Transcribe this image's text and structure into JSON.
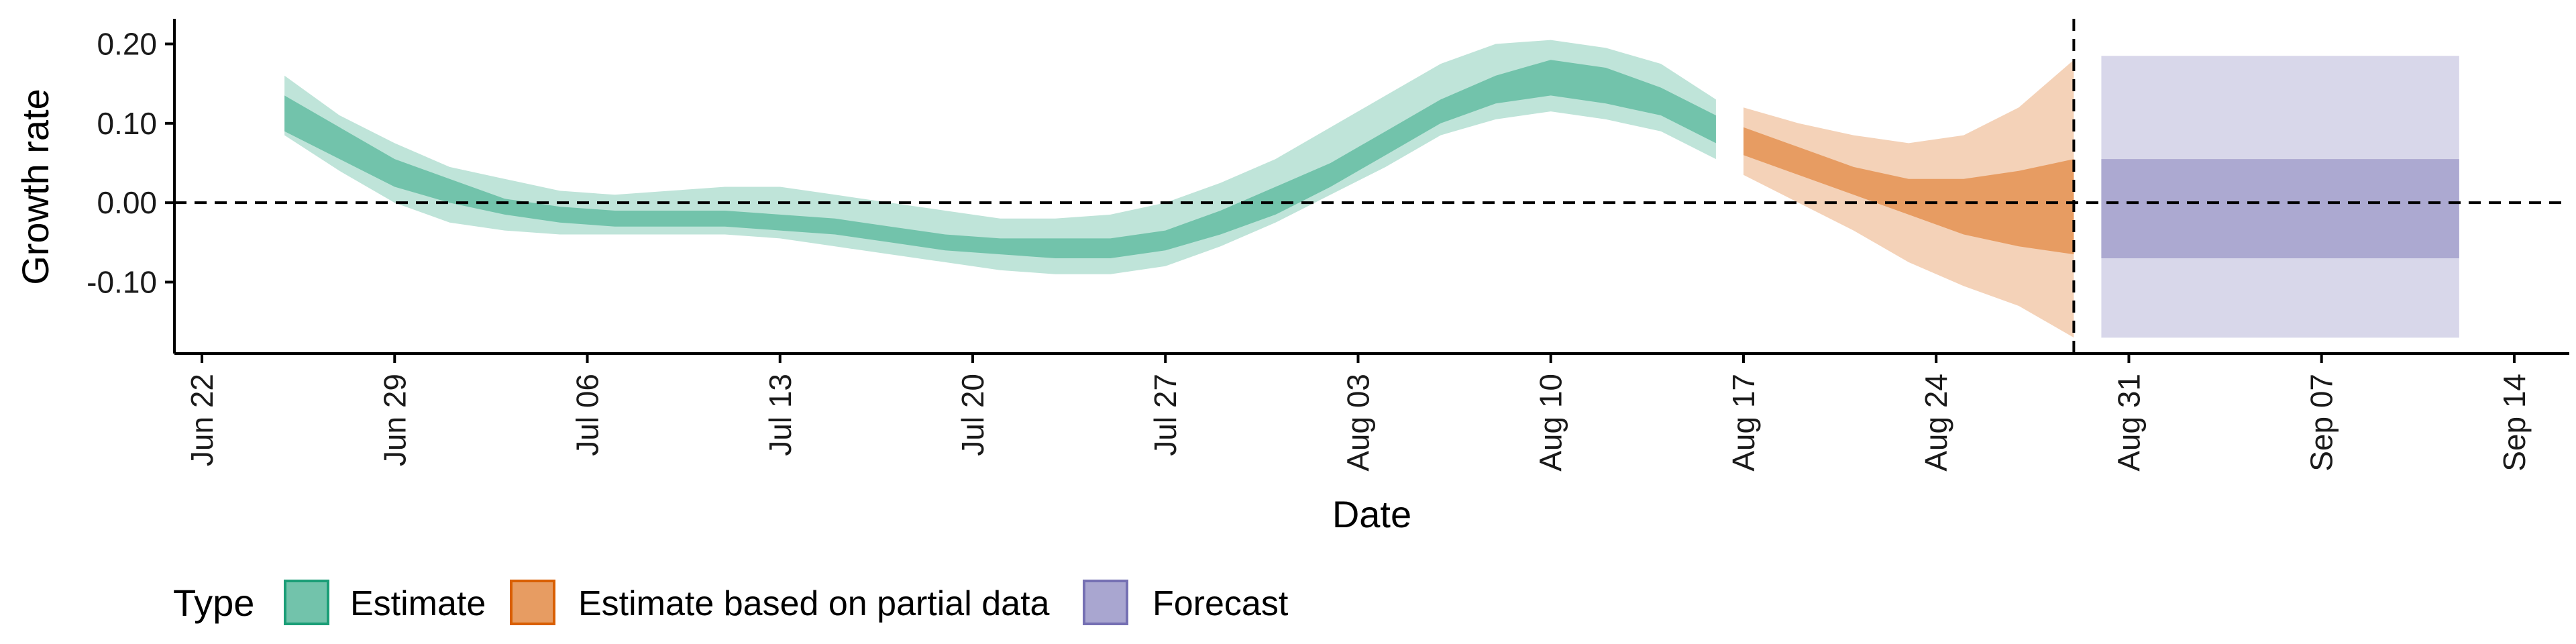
{
  "chart_data": {
    "type": "area",
    "xlabel": "Date",
    "ylabel": "Growth rate",
    "x_ticks": [
      "Jun 22",
      "Jun 29",
      "Jul 06",
      "Jul 13",
      "Jul 20",
      "Jul 27",
      "Aug 03",
      "Aug 10",
      "Aug 17",
      "Aug 24",
      "Aug 31",
      "Sep 07",
      "Sep 14"
    ],
    "x_tick_dates": [
      "2020-06-22",
      "2020-06-29",
      "2020-07-06",
      "2020-07-13",
      "2020-07-20",
      "2020-07-27",
      "2020-08-03",
      "2020-08-10",
      "2020-08-17",
      "2020-08-24",
      "2020-08-31",
      "2020-09-07",
      "2020-09-14"
    ],
    "xlim": [
      "2020-06-21",
      "2020-09-16"
    ],
    "y_ticks": [
      "0.20",
      "0.10",
      "0.00",
      "-0.10"
    ],
    "y_tick_values": [
      0.2,
      0.1,
      0.0,
      -0.1
    ],
    "ylim": [
      -0.19,
      0.23
    ],
    "reference_line_y": 0.0,
    "cutoff_date": "2020-08-29",
    "legend_position": "bottom",
    "legend_title": "Type",
    "series": [
      {
        "name": "Estimate",
        "color": "#1b9e77",
        "dates": [
          "2020-06-25",
          "2020-06-27",
          "2020-06-29",
          "2020-07-01",
          "2020-07-03",
          "2020-07-05",
          "2020-07-07",
          "2020-07-09",
          "2020-07-11",
          "2020-07-13",
          "2020-07-15",
          "2020-07-17",
          "2020-07-19",
          "2020-07-21",
          "2020-07-23",
          "2020-07-25",
          "2020-07-27",
          "2020-07-29",
          "2020-07-31",
          "2020-08-02",
          "2020-08-04",
          "2020-08-06",
          "2020-08-08",
          "2020-08-10",
          "2020-08-12",
          "2020-08-14",
          "2020-08-16"
        ],
        "median": [
          0.11,
          0.075,
          0.04,
          0.015,
          -0.005,
          -0.015,
          -0.02,
          -0.02,
          -0.02,
          -0.025,
          -0.03,
          -0.04,
          -0.05,
          -0.055,
          -0.055,
          -0.06,
          -0.05,
          -0.025,
          0.0,
          0.035,
          0.075,
          0.115,
          0.145,
          0.16,
          0.145,
          0.125,
          0.09
        ],
        "lower_50": [
          0.09,
          0.055,
          0.02,
          0.0,
          -0.015,
          -0.025,
          -0.03,
          -0.03,
          -0.03,
          -0.035,
          -0.04,
          -0.05,
          -0.06,
          -0.065,
          -0.07,
          -0.07,
          -0.06,
          -0.04,
          -0.015,
          0.02,
          0.06,
          0.1,
          0.125,
          0.135,
          0.125,
          0.11,
          0.075
        ],
        "upper_50": [
          0.135,
          0.095,
          0.055,
          0.03,
          0.005,
          -0.005,
          -0.01,
          -0.01,
          -0.01,
          -0.015,
          -0.02,
          -0.03,
          -0.04,
          -0.045,
          -0.045,
          -0.045,
          -0.035,
          -0.01,
          0.02,
          0.05,
          0.09,
          0.13,
          0.16,
          0.18,
          0.17,
          0.145,
          0.11
        ],
        "lower_90": [
          0.085,
          0.04,
          0.0,
          -0.025,
          -0.035,
          -0.04,
          -0.04,
          -0.04,
          -0.04,
          -0.045,
          -0.055,
          -0.065,
          -0.075,
          -0.085,
          -0.09,
          -0.09,
          -0.08,
          -0.055,
          -0.025,
          0.01,
          0.045,
          0.085,
          0.105,
          0.115,
          0.105,
          0.09,
          0.055
        ],
        "upper_90": [
          0.16,
          0.11,
          0.075,
          0.045,
          0.03,
          0.015,
          0.01,
          0.015,
          0.02,
          0.02,
          0.01,
          0.0,
          -0.01,
          -0.02,
          -0.02,
          -0.015,
          0.0,
          0.025,
          0.055,
          0.095,
          0.135,
          0.175,
          0.2,
          0.205,
          0.195,
          0.175,
          0.13
        ]
      },
      {
        "name": "Estimate based on partial data",
        "color": "#d95f02",
        "dates": [
          "2020-08-17",
          "2020-08-19",
          "2020-08-21",
          "2020-08-23",
          "2020-08-25",
          "2020-08-27",
          "2020-08-29"
        ],
        "median": [
          0.075,
          0.05,
          0.03,
          0.01,
          -0.005,
          -0.005,
          -0.005
        ],
        "lower_50": [
          0.06,
          0.035,
          0.01,
          -0.015,
          -0.04,
          -0.055,
          -0.065
        ],
        "upper_50": [
          0.095,
          0.07,
          0.045,
          0.03,
          0.03,
          0.04,
          0.055
        ],
        "lower_90": [
          0.035,
          0.0,
          -0.035,
          -0.075,
          -0.105,
          -0.13,
          -0.17
        ],
        "upper_90": [
          0.12,
          0.1,
          0.085,
          0.075,
          0.085,
          0.12,
          0.18
        ]
      },
      {
        "name": "Forecast",
        "color": "#7570b3",
        "dates": [
          "2020-08-30",
          "2020-09-12"
        ],
        "lower_50": [
          -0.07,
          -0.07
        ],
        "upper_50": [
          0.055,
          0.055
        ],
        "lower_90": [
          -0.17,
          -0.17
        ],
        "upper_90": [
          0.185,
          0.185
        ]
      }
    ]
  }
}
